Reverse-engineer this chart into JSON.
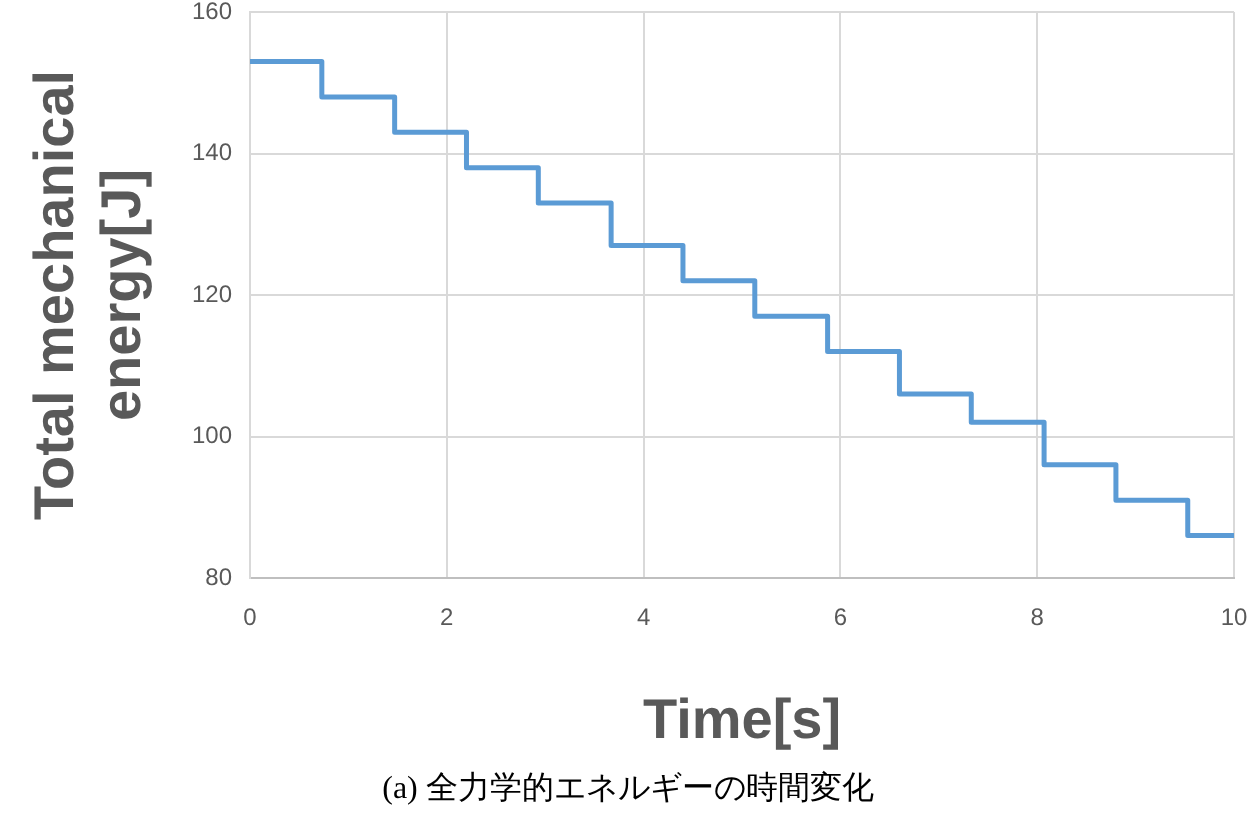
{
  "chart_data": {
    "type": "step",
    "xlabel": "Time[s]",
    "ylabel": "Total mechanical energy[J]",
    "x": [
      0,
      0.73,
      1.47,
      2.2,
      2.93,
      3.67,
      4.4,
      5.13,
      5.87,
      6.6,
      7.33,
      8.07,
      8.8,
      9.53,
      10
    ],
    "values": [
      153,
      148,
      143,
      138,
      133,
      127,
      122,
      117,
      112,
      106,
      102,
      96,
      91,
      86,
      86
    ],
    "color": "#5b9bd5",
    "xlim": [
      0,
      10
    ],
    "xticks": [
      0,
      2,
      4,
      6,
      8,
      10
    ],
    "ylim": [
      80,
      160
    ],
    "yticks": [
      80,
      100,
      120,
      140,
      160
    ],
    "grid": true,
    "annotations": [
      "(a) 全力学的エネルギーの時間変化"
    ]
  }
}
